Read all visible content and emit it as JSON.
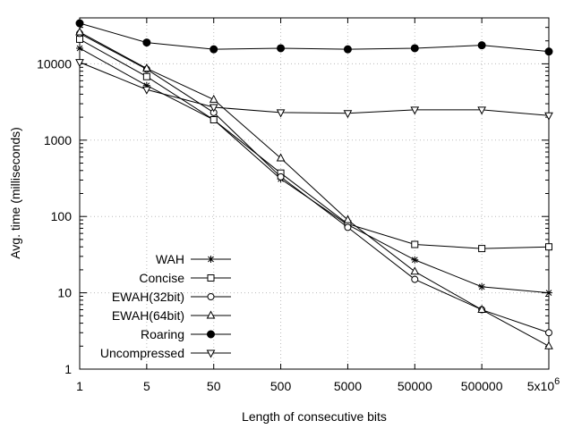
{
  "chart_data": {
    "type": "line",
    "title": "",
    "xlabel": "Length of consecutive bits",
    "ylabel": "Avg. time (milliseconds)",
    "x_scale": "log",
    "y_scale": "log",
    "x": [
      1,
      5,
      50,
      500,
      5000,
      50000,
      500000,
      5000000
    ],
    "x_tick_labels": [
      "1",
      "5",
      "50",
      "500",
      "5000",
      "50000",
      "500000",
      "5x10^6"
    ],
    "ylim": [
      1,
      40000
    ],
    "y_ticks": [
      1,
      10,
      100,
      1000,
      10000
    ],
    "y_tick_labels": [
      "1",
      "10",
      "100",
      "1000",
      "10000"
    ],
    "grid": true,
    "legend_position": "bottom-left",
    "series": [
      {
        "name": "WAH",
        "marker": "star",
        "values": [
          16000,
          5200,
          1850,
          310,
          78,
          27,
          12,
          10
        ]
      },
      {
        "name": "Concise",
        "marker": "square",
        "values": [
          21000,
          6800,
          1850,
          370,
          80,
          43,
          38,
          40
        ]
      },
      {
        "name": "EWAH(32bit)",
        "marker": "circle",
        "values": [
          25000,
          8500,
          2300,
          330,
          72,
          15,
          6,
          3
        ]
      },
      {
        "name": "EWAH(64bit)",
        "marker": "triangle",
        "values": [
          26000,
          8700,
          3400,
          580,
          90,
          19,
          6,
          2
        ]
      },
      {
        "name": "Roaring",
        "marker": "filled-circle",
        "values": [
          34000,
          19000,
          15500,
          16000,
          15500,
          16000,
          17500,
          14500
        ]
      },
      {
        "name": "Uncompressed",
        "marker": "triangle-down",
        "values": [
          10500,
          4600,
          2700,
          2300,
          2250,
          2500,
          2500,
          2100
        ]
      }
    ]
  }
}
